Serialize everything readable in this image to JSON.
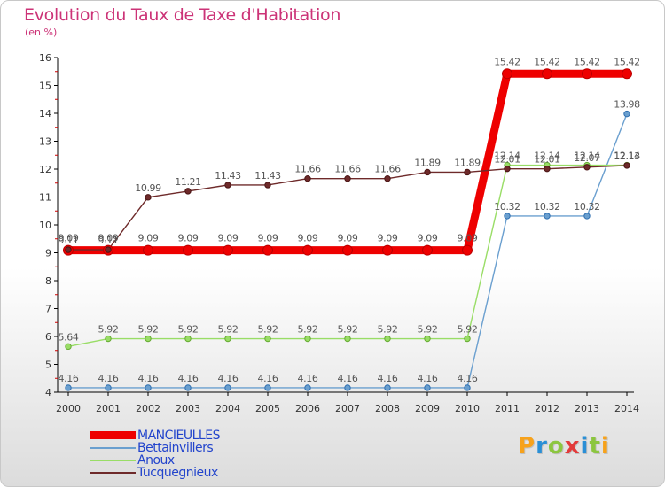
{
  "title": "Evolution du Taux de Taxe d'Habitation",
  "subtitle": "(en %)",
  "logo": {
    "text": "Proxiti",
    "letter_colors": [
      "#f7a21b",
      "#2a8fd6",
      "#8cc63f",
      "#e23b3b",
      "#2a8fd6",
      "#8cc63f",
      "#f7a21b"
    ]
  },
  "chart_data": {
    "type": "line",
    "title": "Evolution du Taux de Taxe d'Habitation",
    "ylabel": "(en %)",
    "xlabel": "",
    "x": [
      "2000",
      "2001",
      "2002",
      "2003",
      "2004",
      "2005",
      "2006",
      "2007",
      "2008",
      "2009",
      "2010",
      "2011",
      "2012",
      "2013",
      "2014"
    ],
    "ylim": [
      4,
      16
    ],
    "yticks": [
      "4",
      "5",
      "6",
      "7",
      "8",
      "9",
      "10",
      "11",
      "12",
      "13",
      "14",
      "15",
      "16"
    ],
    "grid": false,
    "legend_position": "bottom-left",
    "series": [
      {
        "name": "MANCIEULLES",
        "color": "#ee0000",
        "emphasis": true,
        "values": [
          9.09,
          9.09,
          9.09,
          9.09,
          9.09,
          9.09,
          9.09,
          9.09,
          9.09,
          9.09,
          9.09,
          15.42,
          15.42,
          15.42,
          15.42
        ],
        "labels": [
          "9.09",
          "9.09",
          "9.09",
          "9.09",
          "9.09",
          "9.09",
          "9.09",
          "9.09",
          "9.09",
          "9.09",
          "9.09",
          "15.42",
          "15.42",
          "15.42",
          "15.42"
        ]
      },
      {
        "name": "Bettainvillers",
        "color": "#6a9fcf",
        "emphasis": false,
        "values": [
          4.16,
          4.16,
          4.16,
          4.16,
          4.16,
          4.16,
          4.16,
          4.16,
          4.16,
          4.16,
          4.16,
          10.32,
          10.32,
          10.32,
          13.98
        ],
        "labels": [
          "4.16",
          "4.16",
          "4.16",
          "4.16",
          "4.16",
          "4.16",
          "4.16",
          "4.16",
          "4.16",
          "4.16",
          "4.16",
          "10.32",
          "10.32",
          "10.32",
          "13.98"
        ]
      },
      {
        "name": "Anoux",
        "color": "#99dd66",
        "emphasis": false,
        "values": [
          5.64,
          5.92,
          5.92,
          5.92,
          5.92,
          5.92,
          5.92,
          5.92,
          5.92,
          5.92,
          5.92,
          12.14,
          12.14,
          12.14,
          12.14
        ],
        "labels": [
          "5.64",
          "5.92",
          "5.92",
          "5.92",
          "5.92",
          "5.92",
          "5.92",
          "5.92",
          "5.92",
          "5.92",
          "5.92",
          "12.14",
          "12.14",
          "12.14",
          "12.14"
        ]
      },
      {
        "name": "Tucquegnieux",
        "color": "#6e2a2a",
        "emphasis": false,
        "values": [
          9.11,
          9.11,
          10.99,
          11.21,
          11.43,
          11.43,
          11.66,
          11.66,
          11.66,
          11.89,
          11.89,
          12.01,
          12.01,
          12.07,
          12.13
        ],
        "labels": [
          "9.11",
          "9.11",
          "10.99",
          "11.21",
          "11.43",
          "11.43",
          "11.66",
          "11.66",
          "11.66",
          "11.89",
          "11.89",
          "12.01",
          "12.01",
          "12.07",
          "12.13"
        ]
      }
    ]
  }
}
